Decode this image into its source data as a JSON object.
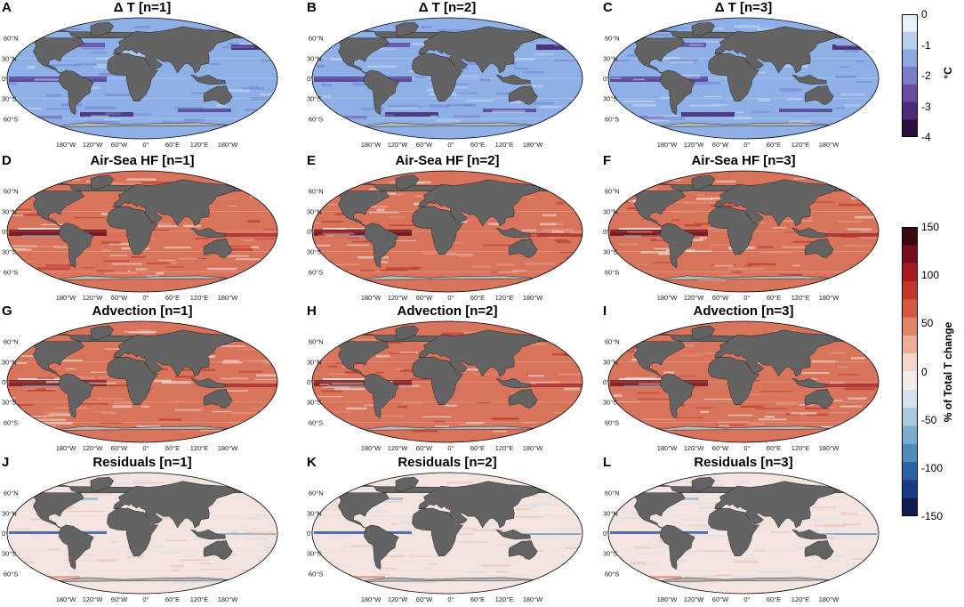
{
  "panels": [
    {
      "letter": "A",
      "title": "Δ T [n=1]",
      "type": "dt"
    },
    {
      "letter": "B",
      "title": "Δ T [n=2]",
      "type": "dt"
    },
    {
      "letter": "C",
      "title": "Δ T [n=3]",
      "type": "dt"
    },
    {
      "letter": "D",
      "title": "Air-Sea HF [n=1]",
      "type": "pos"
    },
    {
      "letter": "E",
      "title": "Air-Sea HF [n=2]",
      "type": "pos"
    },
    {
      "letter": "F",
      "title": "Air-Sea HF [n=3]",
      "type": "pos"
    },
    {
      "letter": "G",
      "title": "Advection [n=1]",
      "type": "pos"
    },
    {
      "letter": "H",
      "title": "Advection [n=2]",
      "type": "pos"
    },
    {
      "letter": "I",
      "title": "Advection [n=3]",
      "type": "pos"
    },
    {
      "letter": "J",
      "title": "Residuals [n=1]",
      "type": "res"
    },
    {
      "letter": "K",
      "title": "Residuals [n=2]",
      "type": "res"
    },
    {
      "letter": "L",
      "title": "Residuals [n=3]",
      "type": "res"
    }
  ],
  "lat_labels": [
    "60°N",
    "30°N",
    "0°",
    "30°S",
    "60°S"
  ],
  "lon_labels": [
    "180°W",
    "120°W",
    "60°W",
    "0°",
    "60°E",
    "120°E",
    "180°W"
  ],
  "colorbar_top": {
    "label": "°C",
    "ticks": [
      "0",
      "-1",
      "-2",
      "-3",
      "-4"
    ],
    "colors": [
      "#e8f1f8",
      "#b9d0ea",
      "#8ea9e0",
      "#7a7ccc",
      "#6a4ba6",
      "#4f2a7a",
      "#2e0d3d"
    ]
  },
  "colorbar_bottom": {
    "label": "% of Total T change",
    "ticks": [
      "150",
      "100",
      "50",
      "0",
      "-50",
      "-100",
      "-150"
    ],
    "colors": [
      "#3b0710",
      "#7a0d1c",
      "#a5191f",
      "#c4352a",
      "#d4583f",
      "#e08566",
      "#eaae99",
      "#f3d6cc",
      "#f4ecea",
      "#d4e2eb",
      "#a9cadb",
      "#7badcc",
      "#4f8cbe",
      "#2b62a6",
      "#173b86",
      "#0e1f52"
    ]
  },
  "colors": {
    "land": "#636363",
    "ice": "#b9b9b9",
    "ocean_dt": "#8fb0e6",
    "ocean_pos": "#d8735c",
    "ocean_res": "#f4e4e0"
  }
}
